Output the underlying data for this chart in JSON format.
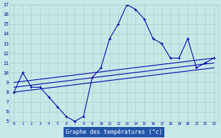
{
  "xlabel": "Graphe des températures (°c)",
  "bg_color": "#c8e8e8",
  "grid_color": "#aacccc",
  "line_color": "#0000aa",
  "axis_bg": "#c8e8e8",
  "xlabel_bg": "#2255aa",
  "xlabel_fg": "#ffffff",
  "xlim": [
    -0.5,
    23.5
  ],
  "ylim": [
    5,
    17
  ],
  "xticks": [
    0,
    1,
    2,
    3,
    4,
    5,
    6,
    7,
    8,
    9,
    10,
    11,
    12,
    13,
    14,
    15,
    16,
    17,
    18,
    19,
    20,
    21,
    22,
    23
  ],
  "yticks": [
    5,
    6,
    7,
    8,
    9,
    10,
    11,
    12,
    13,
    14,
    15,
    16,
    17
  ],
  "series_curve": {
    "x": [
      0,
      1,
      2,
      3,
      4,
      5,
      6,
      7,
      8,
      9,
      10,
      11,
      12,
      13,
      14,
      15,
      16,
      17,
      18,
      19,
      20,
      21,
      22,
      23
    ],
    "y": [
      8,
      10,
      8.5,
      8.5,
      7.5,
      6.5,
      5.5,
      5,
      5.5,
      9.5,
      10.5,
      13.5,
      15,
      17,
      16.5,
      15.5,
      13.5,
      13,
      11.5,
      11.5,
      13.5,
      10.5,
      11,
      11.5
    ]
  },
  "line1": {
    "x": [
      0,
      23
    ],
    "y": [
      8.0,
      10.5
    ]
  },
  "line2": {
    "x": [
      0,
      23
    ],
    "y": [
      8.5,
      11.0
    ]
  },
  "line3": {
    "x": [
      0,
      23
    ],
    "y": [
      9.0,
      11.5
    ]
  }
}
